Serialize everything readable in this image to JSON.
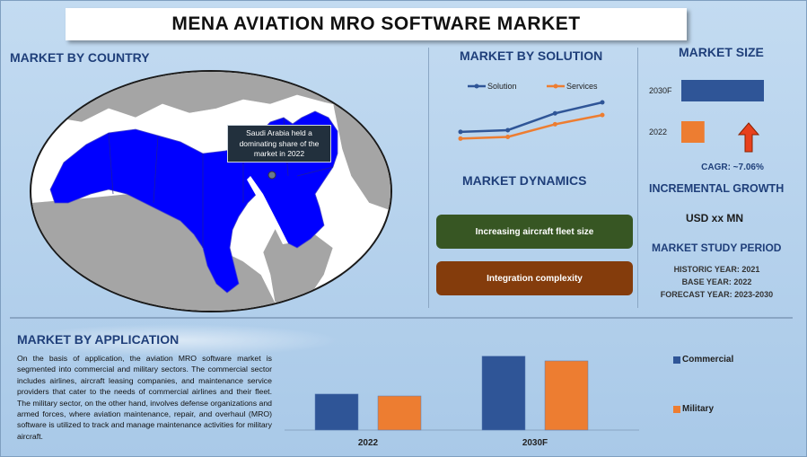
{
  "title": "MENA AVIATION MRO SOFTWARE MARKET",
  "country": {
    "heading": "MARKET BY COUNTRY",
    "callout": "Saudi Arabia held a dominating share of the market in 2022",
    "highlight_color": "#0000ff",
    "other_color": "#a5a5a5"
  },
  "solution": {
    "heading": "MARKET BY SOLUTION",
    "legend": [
      "Solution",
      "Services"
    ]
  },
  "dynamics": {
    "heading": "MARKET DYNAMICS",
    "items": [
      "Increasing aircraft fleet size",
      "Integration complexity"
    ],
    "colors": [
      "#375623",
      "#843c0c"
    ]
  },
  "size": {
    "heading": "MARKET SIZE",
    "bars": [
      "2030F",
      "2022"
    ],
    "cagr": "CAGR:  ~7.06%",
    "growth_heading": "INCREMENTAL GROWTH",
    "growth_value": "USD xx MN",
    "study_heading": "MARKET STUDY PERIOD",
    "historic": "HISTORIC YEAR: 2021",
    "base": "BASE YEAR: 2022",
    "forecast": "FORECAST YEAR: 2023-2030"
  },
  "application": {
    "heading": "MARKET BY APPLICATION",
    "text": "On the basis of application, the aviation MRO software market is segmented into commercial and military sectors. The commercial sector includes airlines, aircraft leasing companies, and maintenance service providers that cater to the needs of commercial airlines and their fleet. The military sector, on the other hand, involves defense organizations and armed forces, where aviation maintenance, repair, and overhaul (MRO) software is utilized to track and manage maintenance activities for military aircraft."
  },
  "chart_data": [
    {
      "type": "line",
      "title": "MARKET BY SOLUTION",
      "x": [
        1,
        2,
        3,
        4
      ],
      "series": [
        {
          "name": "Solution",
          "values": [
            3.0,
            3.2,
            5.2,
            6.5
          ],
          "color": "#2f5597"
        },
        {
          "name": "Services",
          "values": [
            2.2,
            2.4,
            3.9,
            5.0
          ],
          "color": "#ed7d31"
        }
      ],
      "ylim": [
        0,
        10
      ],
      "legend": "top"
    },
    {
      "type": "bar",
      "title": "MARKET SIZE",
      "categories": [
        "2030F",
        "2022"
      ],
      "values": [
        100,
        28
      ],
      "colors": [
        "#2f5597",
        "#ed7d31"
      ],
      "orientation": "horizontal"
    },
    {
      "type": "bar",
      "title": "MARKET BY APPLICATION",
      "categories": [
        "2022",
        "2030F"
      ],
      "series": [
        {
          "name": "Commercial",
          "values": [
            38,
            78
          ],
          "color": "#2f5597"
        },
        {
          "name": "Military",
          "values": [
            36,
            73
          ],
          "color": "#ed7d31"
        }
      ],
      "ylim": [
        0,
        90
      ],
      "legend": "right"
    }
  ]
}
